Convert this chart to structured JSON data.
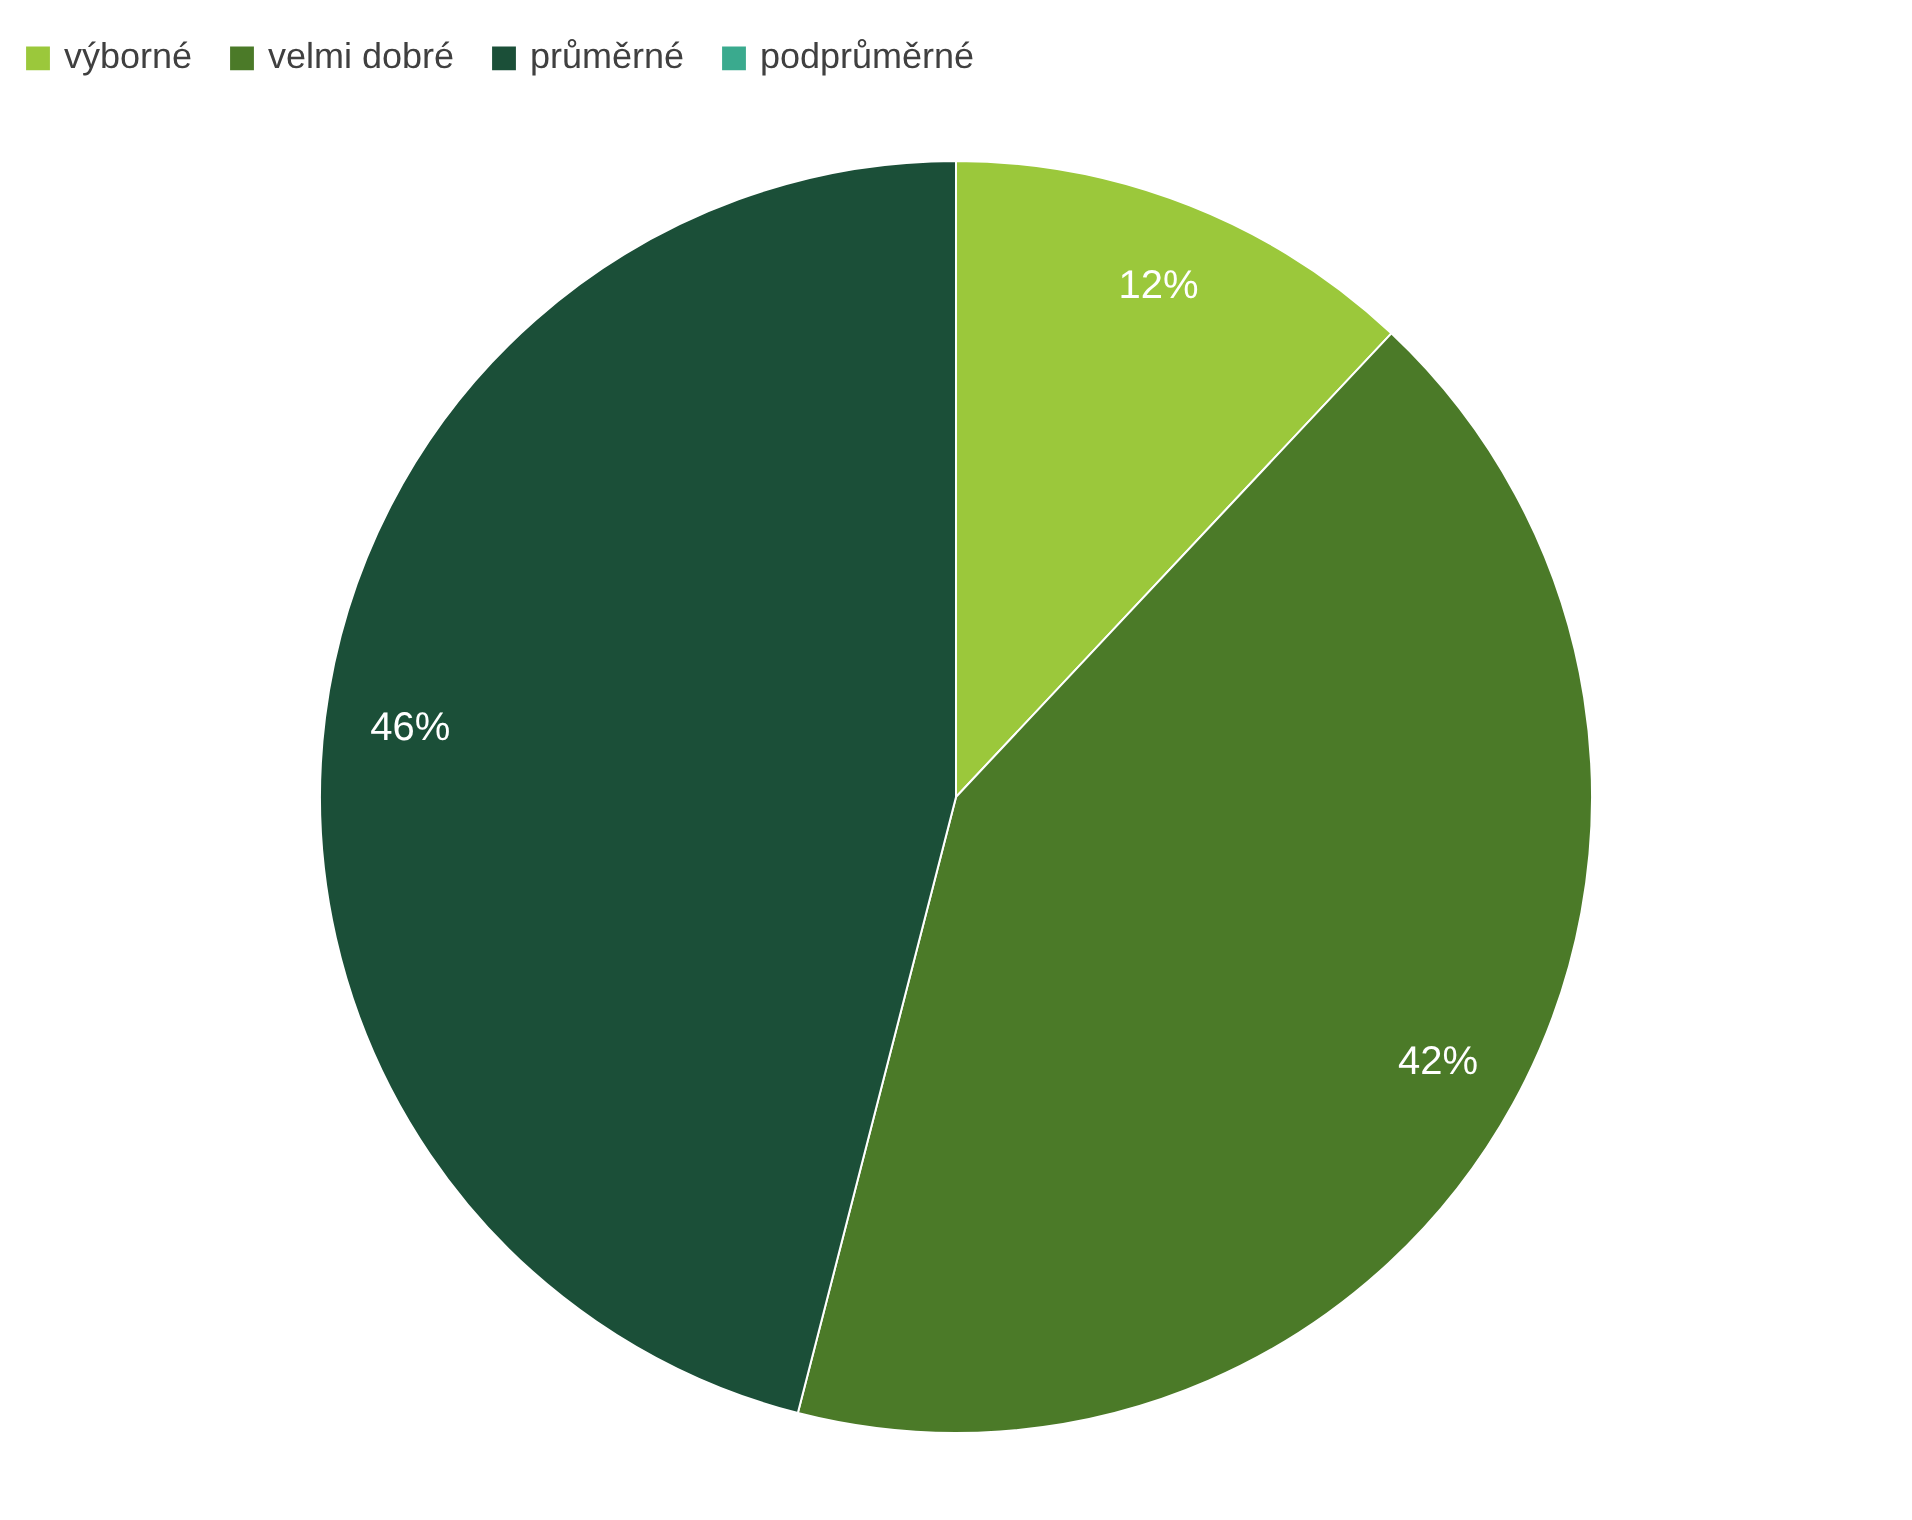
{
  "chart_data": {
    "type": "pie",
    "categories": [
      "výborné",
      "velmi dobré",
      "průměrné",
      "podprůměrné"
    ],
    "values": [
      12,
      42,
      46,
      0
    ],
    "colors": [
      "#9bc83b",
      "#4b7a28",
      "#1b4f38",
      "#3aaa8e"
    ],
    "value_labels": [
      "12%",
      "42%",
      "46%",
      null
    ],
    "legend": "top"
  }
}
